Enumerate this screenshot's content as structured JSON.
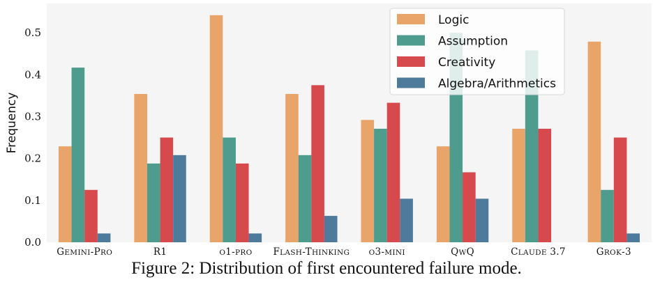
{
  "caption": "Figure 2: Distribution of first encountered failure mode.",
  "chart_data": {
    "type": "bar",
    "ylabel": "Frequency",
    "xlabel": "",
    "ylim": [
      0,
      0.57
    ],
    "yticks": [
      "0.0",
      "0.1",
      "0.2",
      "0.3",
      "0.4",
      "0.5"
    ],
    "grid": false,
    "legend_position": "top-right",
    "categories": [
      "Gemini-Pro",
      "R1",
      "o1-pro",
      "Flash-Thinking",
      "o3-mini",
      "QwQ",
      "Claude 3.7",
      "Grok-3"
    ],
    "series": [
      {
        "name": "Logic",
        "color": "#E8A469",
        "values": [
          0.229,
          0.354,
          0.542,
          0.354,
          0.292,
          0.229,
          0.271,
          0.479
        ]
      },
      {
        "name": "Assumption",
        "color": "#4E9C8E",
        "values": [
          0.417,
          0.188,
          0.25,
          0.208,
          0.271,
          0.5,
          0.458,
          0.125
        ]
      },
      {
        "name": "Creativity",
        "color": "#D6494C",
        "values": [
          0.125,
          0.25,
          0.188,
          0.375,
          0.333,
          0.167,
          0.271,
          0.25
        ]
      },
      {
        "name": "Algebra/Arithmetics",
        "color": "#4E7A9C",
        "values": [
          0.021,
          0.208,
          0.021,
          0.063,
          0.104,
          0.104,
          0.0,
          0.021
        ]
      }
    ]
  }
}
